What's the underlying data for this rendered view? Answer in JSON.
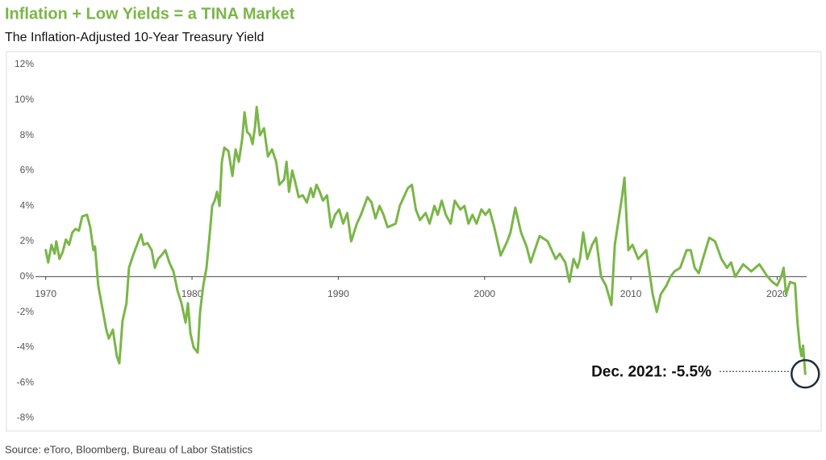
{
  "chart_data": {
    "type": "line",
    "title": "Inflation + Low Yields = a TINA Market",
    "subtitle": "The Inflation-Adjusted 10-Year Treasury Yield",
    "source": "Source: eToro, Bloomberg, Bureau of Labor Statistics",
    "annotation": "Dec. 2021: -5.5%",
    "xlim": [
      1969.3,
      2022.4
    ],
    "xticks": [
      1970,
      1980,
      1990,
      2000,
      2010,
      2020
    ],
    "ylim": [
      -8,
      12
    ],
    "yticks": [
      {
        "value": -8,
        "label": "-8%"
      },
      {
        "value": -6,
        "label": "-6%"
      },
      {
        "value": -4,
        "label": "-4%"
      },
      {
        "value": -2,
        "label": "-2%"
      },
      {
        "value": 0,
        "label": "0%"
      },
      {
        "value": 2,
        "label": "2%"
      },
      {
        "value": 4,
        "label": "4%"
      },
      {
        "value": 6,
        "label": "6%"
      },
      {
        "value": 8,
        "label": "8%"
      },
      {
        "value": 10,
        "label": "10%"
      },
      {
        "value": 12,
        "label": "12%"
      }
    ],
    "grid": false,
    "color": "#7ab648",
    "x": [
      1970.0,
      1970.17,
      1970.39,
      1970.61,
      1970.72,
      1970.94,
      1971.16,
      1971.38,
      1971.6,
      1971.82,
      1972.04,
      1972.27,
      1972.49,
      1972.82,
      1973.04,
      1973.26,
      1973.37,
      1973.59,
      1973.92,
      1974.14,
      1974.31,
      1974.59,
      1974.86,
      1975.03,
      1975.25,
      1975.52,
      1975.69,
      1975.97,
      1976.24,
      1976.52,
      1976.69,
      1976.96,
      1977.24,
      1977.46,
      1977.68,
      1977.9,
      1978.18,
      1978.45,
      1978.73,
      1979.01,
      1979.28,
      1979.56,
      1979.72,
      1979.89,
      1980.11,
      1980.39,
      1980.55,
      1980.77,
      1980.99,
      1981.22,
      1981.38,
      1981.55,
      1981.71,
      1981.88,
      1982.04,
      1982.21,
      1982.49,
      1982.76,
      1982.98,
      1983.2,
      1983.43,
      1983.59,
      1983.76,
      1983.98,
      1984.14,
      1984.31,
      1984.42,
      1984.64,
      1984.92,
      1985.19,
      1985.47,
      1985.75,
      1985.97,
      1986.3,
      1986.46,
      1986.63,
      1986.85,
      1987.07,
      1987.29,
      1987.57,
      1987.85,
      1988.12,
      1988.29,
      1988.51,
      1988.73,
      1988.95,
      1989.23,
      1989.5,
      1989.78,
      1990.06,
      1990.33,
      1990.61,
      1990.88,
      1991.27,
      1991.55,
      1991.99,
      1992.27,
      1992.54,
      1992.82,
      1993.09,
      1993.37,
      1993.92,
      1994.2,
      1994.75,
      1995.03,
      1995.3,
      1995.58,
      1995.97,
      1996.24,
      1996.57,
      1996.8,
      1997.07,
      1997.35,
      1997.68,
      1997.96,
      1998.34,
      1998.62,
      1998.9,
      1999.17,
      1999.45,
      1999.78,
      2000.06,
      2000.33,
      2000.66,
      2000.88,
      2001.1,
      2001.55,
      2001.77,
      2002.1,
      2002.49,
      2002.87,
      2003.15,
      2003.43,
      2003.76,
      2004.31,
      2004.86,
      2005.14,
      2005.52,
      2005.8,
      2006.08,
      2006.35,
      2006.52,
      2006.74,
      2007.02,
      2007.35,
      2007.62,
      2007.73,
      2007.96,
      2008.29,
      2008.67,
      2008.9,
      2009.12,
      2009.39,
      2009.56,
      2009.72,
      2009.83,
      2010.11,
      2010.5,
      2011.05,
      2011.49,
      2011.77,
      2012.04,
      2012.43,
      2012.71,
      2012.98,
      2013.37,
      2013.81,
      2014.09,
      2014.36,
      2014.64,
      2014.92,
      2015.36,
      2015.75,
      2016.19,
      2016.57,
      2016.85,
      2017.13,
      2017.68,
      2018.23,
      2018.78,
      2019.34,
      2019.67,
      2020.0,
      2020.28,
      2020.44,
      2020.61,
      2020.88,
      2021.22,
      2021.38,
      2021.55,
      2021.66,
      2021.77,
      2021.92
    ],
    "values": [
      1.5,
      0.8,
      1.8,
      1.3,
      2.0,
      1.0,
      1.4,
      2.1,
      1.8,
      2.5,
      2.7,
      2.6,
      3.4,
      3.5,
      2.8,
      1.5,
      1.7,
      -0.5,
      -2.0,
      -3.0,
      -3.5,
      -3.0,
      -4.5,
      -4.9,
      -2.5,
      -1.5,
      0.5,
      1.2,
      1.8,
      2.4,
      1.8,
      1.9,
      1.5,
      0.5,
      1.0,
      1.2,
      1.5,
      0.8,
      0.3,
      -0.8,
      -1.5,
      -2.6,
      -1.5,
      -3.2,
      -4.0,
      -4.3,
      -2.0,
      -0.5,
      0.5,
      2.5,
      4.0,
      4.3,
      4.8,
      4.0,
      6.5,
      7.3,
      7.1,
      5.7,
      7.2,
      6.5,
      7.8,
      9.3,
      8.2,
      8.0,
      7.5,
      8.5,
      9.6,
      8.0,
      8.4,
      6.8,
      7.2,
      6.5,
      5.2,
      5.5,
      6.5,
      4.8,
      6.0,
      5.3,
      4.5,
      4.6,
      4.2,
      5.0,
      4.5,
      5.2,
      4.8,
      4.3,
      4.6,
      2.8,
      3.5,
      3.8,
      3.0,
      3.6,
      2.0,
      3.0,
      3.5,
      4.5,
      4.2,
      3.3,
      4.0,
      3.5,
      2.8,
      3.0,
      4.0,
      5.0,
      5.2,
      3.8,
      3.2,
      3.6,
      3.0,
      4.0,
      3.5,
      4.3,
      3.5,
      3.0,
      4.3,
      3.8,
      4.0,
      3.0,
      3.5,
      3.0,
      3.8,
      3.5,
      3.8,
      2.8,
      2.0,
      1.2,
      2.0,
      2.5,
      3.9,
      2.5,
      1.7,
      0.8,
      1.5,
      2.3,
      2.0,
      1.0,
      1.3,
      0.8,
      -0.3,
      1.0,
      0.5,
      1.0,
      2.5,
      1.0,
      1.8,
      2.2,
      1.5,
      0.0,
      -0.5,
      -1.6,
      1.8,
      3.0,
      4.5,
      5.6,
      3.0,
      1.5,
      1.8,
      1.0,
      1.5,
      -1.0,
      -2.0,
      -1.0,
      -0.5,
      0.0,
      0.3,
      0.5,
      1.5,
      1.5,
      0.5,
      0.2,
      1.0,
      2.2,
      2.0,
      1.0,
      0.5,
      0.8,
      0.0,
      0.7,
      0.3,
      0.7,
      0.0,
      -0.3,
      -0.5,
      0.0,
      0.5,
      -1.0,
      -0.3,
      -0.4,
      -2.5,
      -4.0,
      -4.5,
      -3.9,
      -5.5
    ]
  }
}
